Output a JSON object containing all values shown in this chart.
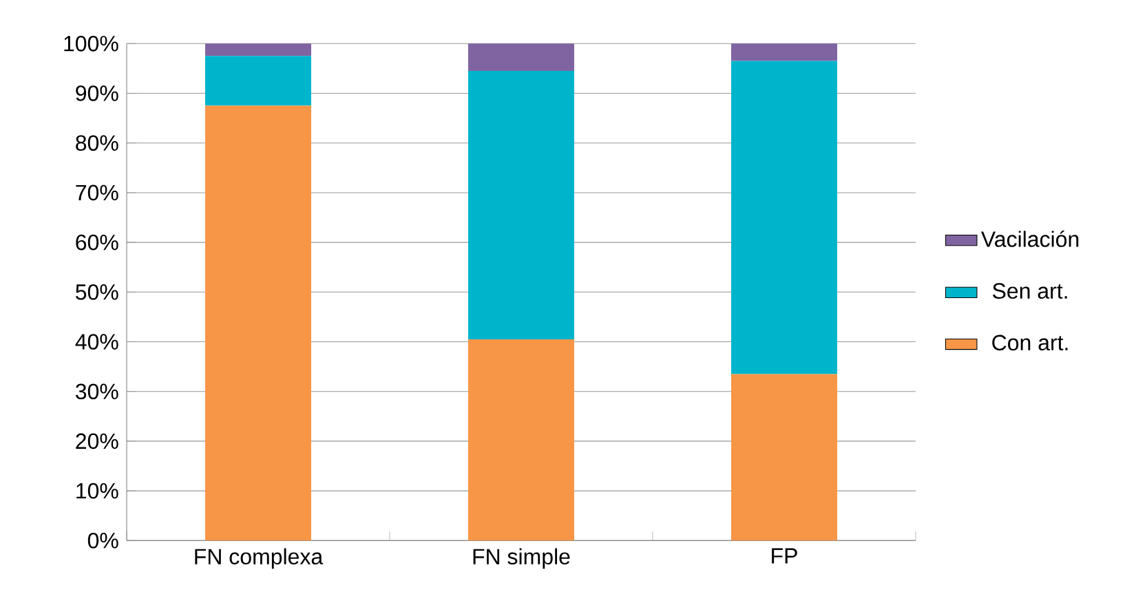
{
  "chart_data": {
    "type": "bar",
    "stacked": true,
    "categories": [
      "FN complexa",
      "FN simple",
      "FP"
    ],
    "series": [
      {
        "name": "Con art.",
        "color": "#f79646",
        "values": [
          87.5,
          40.5,
          33.5
        ]
      },
      {
        "name": "Sen art.",
        "color": "#00b4cc",
        "values": [
          10,
          54,
          63
        ]
      },
      {
        "name": "Vacilación",
        "color": "#8064a2",
        "values": [
          2.5,
          5.5,
          3.5
        ]
      }
    ],
    "ylim": [
      0,
      100
    ],
    "yticks": [
      {
        "value": 0,
        "label": "0%"
      },
      {
        "value": 10,
        "label": "10%"
      },
      {
        "value": 20,
        "label": "20%"
      },
      {
        "value": 30,
        "label": "30%"
      },
      {
        "value": 40,
        "label": "40%"
      },
      {
        "value": 50,
        "label": "50%"
      },
      {
        "value": 60,
        "label": "60%"
      },
      {
        "value": 70,
        "label": "70%"
      },
      {
        "value": 80,
        "label": "80%"
      },
      {
        "value": 90,
        "label": "90%"
      },
      {
        "value": 100,
        "label": "100%"
      }
    ],
    "grid": "y",
    "legend": "right"
  }
}
